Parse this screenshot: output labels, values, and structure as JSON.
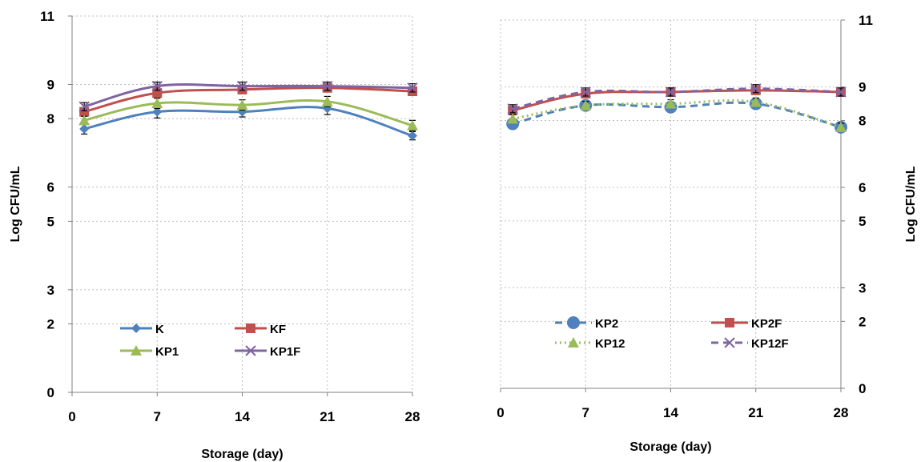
{
  "chart_data": [
    {
      "type": "line",
      "xlabel": "Storage (day)",
      "ylabel": "Log CFU/mL",
      "x": [
        1,
        7,
        14,
        21,
        28
      ],
      "x_ticks": [
        0,
        7,
        14,
        21,
        28
      ],
      "y_ticks": [
        0,
        2,
        3,
        5,
        6,
        8,
        9,
        11
      ],
      "xlim": [
        0,
        28
      ],
      "ylim": [
        0,
        11
      ],
      "grid": true,
      "legend_position": "bottom-center",
      "y_axis_side": "left",
      "series": [
        {
          "name": "K",
          "values": [
            7.7,
            8.2,
            8.2,
            8.3,
            7.5
          ],
          "error": [
            0.15,
            0.18,
            0.15,
            0.18,
            0.12
          ],
          "color": "#4f81bd",
          "marker": "diamond",
          "dash": "solid"
        },
        {
          "name": "KF",
          "values": [
            8.2,
            8.75,
            8.85,
            8.9,
            8.8
          ],
          "error": [
            0.12,
            0.15,
            0.12,
            0.12,
            0.1
          ],
          "color": "#c0504d",
          "marker": "square",
          "dash": "solid"
        },
        {
          "name": "KP1",
          "values": [
            7.95,
            8.45,
            8.4,
            8.5,
            7.8
          ],
          "error": [
            0.12,
            0.15,
            0.15,
            0.15,
            0.15
          ],
          "color": "#9bbb59",
          "marker": "triangle",
          "dash": "solid"
        },
        {
          "name": "KP1F",
          "values": [
            8.35,
            8.95,
            8.95,
            8.95,
            8.9
          ],
          "error": [
            0.12,
            0.12,
            0.12,
            0.12,
            0.12
          ],
          "color": "#8064a2",
          "marker": "x",
          "dash": "solid"
        }
      ]
    },
    {
      "type": "line",
      "xlabel": "Storage (day)",
      "ylabel": "Log CFU/mL",
      "x": [
        1,
        7,
        14,
        21,
        28
      ],
      "x_ticks": [
        0,
        7,
        14,
        21,
        28
      ],
      "y_ticks": [
        0,
        2,
        3,
        5,
        6,
        8,
        9,
        11
      ],
      "xlim": [
        0,
        28
      ],
      "ylim": [
        0,
        11
      ],
      "grid": true,
      "legend_position": "bottom-center",
      "y_axis_side": "right",
      "series": [
        {
          "name": "KP2",
          "values": [
            7.9,
            8.45,
            8.4,
            8.5,
            7.8
          ],
          "error": [
            0.15,
            0.15,
            0.15,
            0.12,
            0.12
          ],
          "color": "#4f81bd",
          "marker": "circle",
          "dash": "dashed"
        },
        {
          "name": "KP2F",
          "values": [
            8.3,
            8.8,
            8.85,
            8.9,
            8.85
          ],
          "error": [
            0.12,
            0.12,
            0.12,
            0.12,
            0.12
          ],
          "color": "#c0504d",
          "marker": "square",
          "dash": "solid"
        },
        {
          "name": "KP12",
          "values": [
            8.05,
            8.45,
            8.5,
            8.55,
            7.8
          ],
          "error": [
            0.12,
            0.12,
            0.12,
            0.12,
            0.12
          ],
          "color": "#9bbb59",
          "marker": "triangle",
          "dash": "dotted"
        },
        {
          "name": "KP12F",
          "values": [
            8.35,
            8.85,
            8.85,
            8.95,
            8.85
          ],
          "error": [
            0.12,
            0.12,
            0.12,
            0.12,
            0.12
          ],
          "color": "#8064a2",
          "marker": "x",
          "dash": "dashed"
        }
      ]
    }
  ]
}
